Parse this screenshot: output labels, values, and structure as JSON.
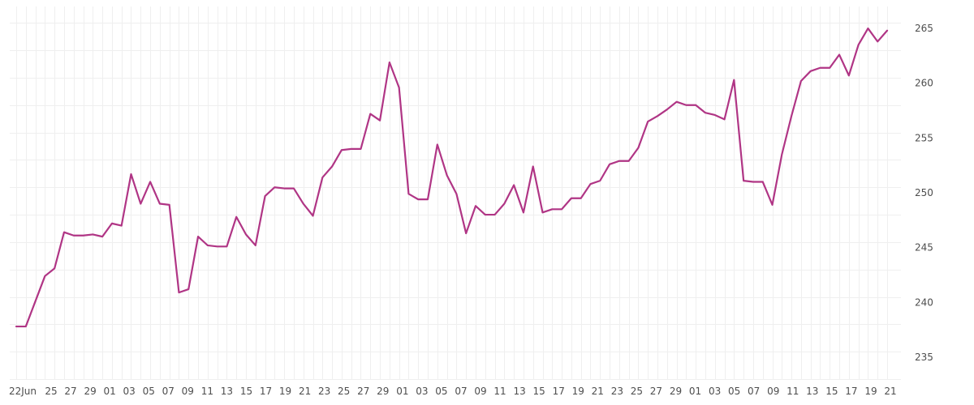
{
  "chart_data": {
    "type": "line",
    "title": "",
    "xlabel": "",
    "ylabel": "",
    "grid": true,
    "y_axis_side": "right",
    "ylim": [
      233,
      267
    ],
    "y_ticks": [
      235,
      240,
      245,
      250,
      255,
      260,
      265
    ],
    "x_tick_labels": [
      "22Jun",
      "25",
      "27",
      "29",
      "01",
      "03",
      "05",
      "07",
      "09",
      "11",
      "13",
      "15",
      "17",
      "19",
      "21",
      "23",
      "25",
      "27",
      "29",
      "01",
      "03",
      "05",
      "07",
      "09",
      "11",
      "13",
      "15",
      "17",
      "19",
      "21",
      "23",
      "25",
      "27",
      "29",
      "01",
      "03",
      "05",
      "07",
      "09",
      "11",
      "13",
      "15",
      "17",
      "19",
      "21"
    ],
    "series": [
      {
        "color": "#b03585",
        "values": [
          237.8,
          237.8,
          240.1,
          242.4,
          243.1,
          246.4,
          246.1,
          246.1,
          246.2,
          246.0,
          247.2,
          247.0,
          251.7,
          249.0,
          251.0,
          249.0,
          248.9,
          240.9,
          241.2,
          246.0,
          245.2,
          245.1,
          245.1,
          247.8,
          246.2,
          245.2,
          249.7,
          250.5,
          250.4,
          250.4,
          249.0,
          247.9,
          251.4,
          252.4,
          253.9,
          254.0,
          254.0,
          257.2,
          256.6,
          261.9,
          259.6,
          249.9,
          249.4,
          249.4,
          254.4,
          251.6,
          249.9,
          246.3,
          248.8,
          248.0,
          248.0,
          249.0,
          250.7,
          248.2,
          252.4,
          248.2,
          248.5,
          248.5,
          249.5,
          249.5,
          250.8,
          251.1,
          252.6,
          252.9,
          252.9,
          254.1,
          256.5,
          257.0,
          257.6,
          258.3,
          258.0,
          258.0,
          257.3,
          257.1,
          256.7,
          260.3,
          251.1,
          251.0,
          251.0,
          248.9,
          253.5,
          257.0,
          260.2,
          261.1,
          261.4,
          261.4,
          262.6,
          260.7,
          263.5,
          265.0,
          263.8,
          264.8
        ]
      }
    ]
  }
}
